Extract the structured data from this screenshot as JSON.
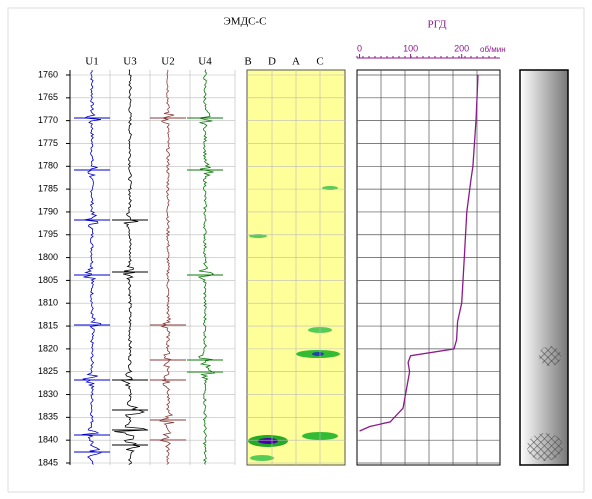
{
  "chart_data": {
    "type": "well-log",
    "title": "ЭМДС-С",
    "ylim": [
      1760,
      1845
    ],
    "yticks": [
      1760,
      1765,
      1770,
      1775,
      1780,
      1785,
      1790,
      1795,
      1800,
      1805,
      1810,
      1815,
      1820,
      1825,
      1830,
      1835,
      1840,
      1845
    ],
    "traces": [
      "U1",
      "U3",
      "U2",
      "U4"
    ],
    "channels": [
      "B",
      "D",
      "A",
      "C"
    ],
    "rgd": {
      "type": "line",
      "title": "РГД",
      "unit": "об/мин",
      "color": "#8b1a8b",
      "xlim": [
        -5,
        275
      ],
      "xticks": [
        0,
        100,
        200
      ],
      "depth": [
        1760,
        1770,
        1780,
        1783,
        1790,
        1800,
        1810,
        1814,
        1818,
        1820,
        1821.5,
        1823,
        1825,
        1830,
        1833,
        1836,
        1837,
        1838
      ],
      "values": [
        232,
        228,
        222,
        218,
        210,
        205,
        200,
        192,
        190,
        185,
        100,
        95,
        98,
        90,
        85,
        60,
        20,
        0
      ]
    }
  }
}
